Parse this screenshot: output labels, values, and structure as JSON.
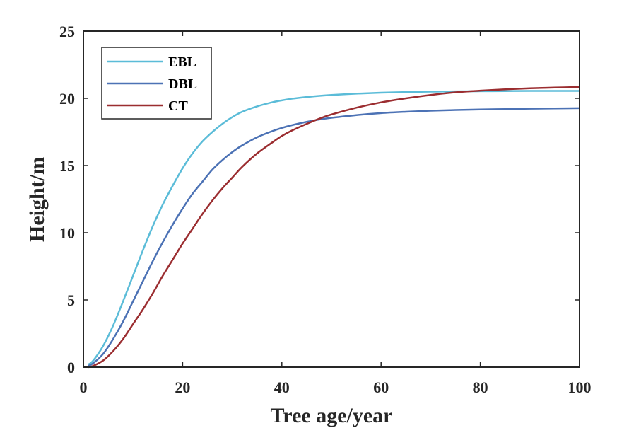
{
  "chart_data": {
    "type": "line",
    "title": "",
    "xlabel": "Tree age/year",
    "ylabel": "Height/m",
    "xlim": [
      0,
      100
    ],
    "ylim": [
      0,
      25
    ],
    "xticks": [
      0,
      20,
      40,
      60,
      80,
      100
    ],
    "yticks": [
      0,
      5,
      10,
      15,
      20,
      25
    ],
    "grid": false,
    "legend_position": "top-left",
    "x": [
      1,
      2,
      4,
      6,
      8,
      10,
      12,
      14,
      16,
      18,
      20,
      22,
      24,
      26,
      28,
      30,
      32,
      35,
      38,
      40,
      42,
      45,
      48,
      50,
      55,
      60,
      65,
      70,
      75,
      80,
      85,
      90,
      95,
      100
    ],
    "series": [
      {
        "name": "EBL",
        "color": "#5bbcd8",
        "values": [
          0.2,
          0.5,
          1.6,
          3.1,
          4.9,
          6.8,
          8.7,
          10.5,
          12.1,
          13.5,
          14.8,
          15.9,
          16.8,
          17.5,
          18.1,
          18.6,
          19.0,
          19.4,
          19.7,
          19.85,
          19.97,
          20.1,
          20.2,
          20.25,
          20.35,
          20.42,
          20.47,
          20.5,
          20.52,
          20.53,
          20.54,
          20.55,
          20.55,
          20.55
        ]
      },
      {
        "name": "DBL",
        "color": "#4c72b5",
        "values": [
          0.1,
          0.3,
          1.0,
          2.1,
          3.4,
          4.9,
          6.4,
          7.9,
          9.3,
          10.6,
          11.8,
          12.9,
          13.8,
          14.7,
          15.4,
          16.0,
          16.5,
          17.1,
          17.55,
          17.8,
          18.0,
          18.25,
          18.45,
          18.55,
          18.75,
          18.9,
          19.0,
          19.08,
          19.13,
          19.17,
          19.2,
          19.23,
          19.25,
          19.27
        ]
      },
      {
        "name": "CT",
        "color": "#9b2d30",
        "values": [
          0.0,
          0.1,
          0.5,
          1.2,
          2.1,
          3.2,
          4.3,
          5.5,
          6.8,
          8.0,
          9.2,
          10.3,
          11.4,
          12.4,
          13.3,
          14.1,
          14.9,
          15.9,
          16.7,
          17.2,
          17.6,
          18.1,
          18.55,
          18.8,
          19.3,
          19.7,
          20.0,
          20.25,
          20.45,
          20.57,
          20.67,
          20.75,
          20.8,
          20.85
        ]
      }
    ]
  }
}
